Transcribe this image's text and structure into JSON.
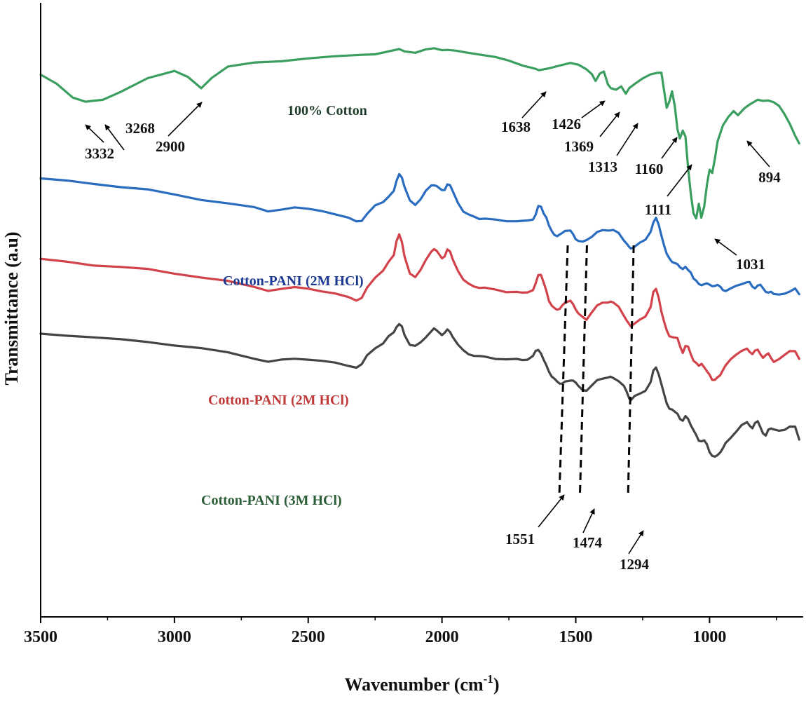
{
  "chart_data": {
    "type": "line",
    "title": "",
    "xlabel": "Wavenumber (cm",
    "xlabel_sup": "-1",
    "xlabel_close": ")",
    "ylabel": "Transmittance (a.u)",
    "xlim": [
      3500,
      650
    ],
    "x_reversed": true,
    "ylim": [
      0,
      100
    ],
    "y_ticks_shown": false,
    "grid": false,
    "legend": "none",
    "x_ticks": [
      3500,
      3000,
      2500,
      2000,
      1500,
      1000
    ],
    "x_tick_labels": [
      "3500",
      "3000",
      "2500",
      "2000",
      "1500",
      "1000"
    ],
    "series": [
      {
        "label": "100% Cotton",
        "color": "#3a9e5f",
        "label_color": "#1f3d2a",
        "x": [
          3500,
          3440,
          3380,
          3332,
          3300,
          3268,
          3200,
          3100,
          3000,
          2950,
          2900,
          2860,
          2800,
          2700,
          2600,
          2500,
          2400,
          2300,
          2250,
          2200,
          2160,
          2140,
          2100,
          2060,
          2030,
          2000,
          1980,
          1950,
          1900,
          1850,
          1800,
          1750,
          1700,
          1650,
          1638,
          1600,
          1560,
          1520,
          1490,
          1460,
          1440,
          1426,
          1410,
          1395,
          1380,
          1369,
          1350,
          1330,
          1313,
          1300,
          1280,
          1250,
          1220,
          1195,
          1180,
          1170,
          1160,
          1150,
          1140,
          1130,
          1120,
          1111,
          1100,
          1090,
          1080,
          1070,
          1060,
          1050,
          1040,
          1031,
          1020,
          1010,
          1000,
          990,
          980,
          970,
          950,
          930,
          910,
          894,
          870,
          850,
          820,
          800,
          780,
          760,
          740,
          720,
          700,
          680,
          665
        ],
        "y": [
          88.3,
          86.7,
          84.6,
          84.0,
          84.0,
          84.1,
          85.6,
          87.8,
          88.8,
          87.9,
          86.2,
          87.8,
          89.5,
          90.3,
          90.6,
          90.9,
          91.2,
          91.6,
          91.7,
          92.0,
          92.4,
          92.2,
          91.9,
          92.3,
          92.6,
          92.4,
          92.3,
          92.1,
          91.9,
          91.6,
          91.1,
          90.5,
          89.9,
          89.3,
          88.9,
          89.3,
          89.9,
          90.2,
          89.8,
          89.2,
          88.5,
          87.2,
          88.4,
          88.9,
          86.8,
          86.0,
          85.8,
          86.5,
          85.2,
          86.0,
          86.8,
          87.8,
          88.3,
          88.5,
          88.7,
          85.8,
          82.8,
          83.9,
          85.7,
          83.2,
          79.3,
          77.9,
          79.3,
          78.2,
          73.0,
          68.9,
          65.8,
          64.8,
          67.2,
          65.1,
          66.9,
          70.2,
          72.8,
          72.4,
          74.6,
          77.3,
          80.1,
          81.5,
          82.3,
          81.6,
          82.9,
          83.5,
          84.1,
          84.0,
          84.2,
          83.8,
          83.1,
          81.9,
          80.4,
          78.3,
          77.0
        ]
      },
      {
        "label": "Cotton-PANI (2M HCl)",
        "color": "#2a6cc0",
        "label_color": "#1c3a94",
        "x": [
          3500,
          3400,
          3300,
          3200,
          3100,
          3000,
          2900,
          2800,
          2700,
          2650,
          2600,
          2550,
          2500,
          2450,
          2400,
          2350,
          2320,
          2300,
          2280,
          2250,
          2220,
          2200,
          2180,
          2170,
          2160,
          2150,
          2140,
          2120,
          2100,
          2080,
          2060,
          2040,
          2030,
          2020,
          2000,
          1990,
          1980,
          1970,
          1960,
          1940,
          1920,
          1900,
          1880,
          1860,
          1840,
          1800,
          1760,
          1720,
          1700,
          1680,
          1660,
          1650,
          1640,
          1630,
          1620,
          1610,
          1600,
          1590,
          1580,
          1570,
          1560,
          1551,
          1540,
          1520,
          1510,
          1500,
          1490,
          1474,
          1460,
          1440,
          1420,
          1400,
          1380,
          1370,
          1360,
          1340,
          1320,
          1310,
          1300,
          1294,
          1280,
          1260,
          1240,
          1220,
          1210,
          1200,
          1190,
          1180,
          1170,
          1160,
          1150,
          1140,
          1120,
          1110,
          1100,
          1090,
          1080,
          1070,
          1060,
          1050,
          1040,
          1030,
          1020,
          1010,
          1000,
          990,
          980,
          970,
          960,
          950,
          940,
          920,
          900,
          880,
          860,
          850,
          840,
          830,
          820,
          810,
          800,
          790,
          780,
          770,
          760,
          740,
          720,
          700,
          680,
          665
        ],
        "y": [
          71.3,
          71.0,
          70.6,
          70.0,
          69.5,
          68.8,
          68.0,
          67.3,
          66.6,
          66.1,
          66.4,
          66.6,
          66.4,
          66.2,
          65.6,
          64.9,
          64.4,
          64.6,
          65.6,
          66.9,
          67.6,
          68.5,
          69.3,
          70.9,
          72.2,
          71.6,
          69.9,
          67.8,
          67.2,
          68.0,
          69.3,
          70.3,
          70.4,
          70.1,
          69.4,
          69.6,
          70.5,
          70.2,
          69.3,
          67.5,
          66.0,
          65.4,
          65.2,
          64.9,
          64.8,
          64.6,
          64.5,
          64.5,
          64.4,
          64.5,
          64.8,
          65.5,
          66.8,
          66.8,
          65.8,
          65.0,
          63.6,
          62.9,
          62.3,
          61.9,
          62.2,
          62.6,
          62.9,
          62.8,
          62.3,
          61.6,
          61.2,
          61.0,
          61.4,
          62.0,
          62.6,
          62.9,
          63.0,
          63.0,
          62.9,
          62.5,
          61.4,
          60.8,
          60.1,
          60.0,
          60.4,
          60.9,
          61.3,
          62.8,
          64.3,
          64.9,
          63.8,
          62.2,
          60.5,
          59.0,
          58.4,
          57.9,
          57.4,
          56.8,
          56.7,
          57.1,
          56.4,
          56.0,
          55.2,
          54.8,
          54.1,
          54.0,
          54.3,
          54.3,
          54.0,
          53.9,
          54.0,
          54.0,
          53.7,
          53.3,
          53.1,
          53.4,
          53.9,
          54.3,
          54.5,
          54.4,
          53.8,
          53.6,
          53.9,
          54.0,
          53.6,
          53.0,
          52.7,
          52.9,
          52.7,
          52.5,
          52.5,
          53.0,
          53.6,
          52.5
        ]
      },
      {
        "label": "Cotton-PANI (2M HCl)",
        "color": "#d2424a",
        "label_color": "#c03a3a",
        "x": [
          3500,
          3400,
          3300,
          3200,
          3100,
          3000,
          2900,
          2800,
          2700,
          2650,
          2600,
          2550,
          2500,
          2450,
          2400,
          2350,
          2320,
          2300,
          2280,
          2250,
          2220,
          2200,
          2180,
          2170,
          2160,
          2150,
          2140,
          2120,
          2100,
          2080,
          2060,
          2040,
          2030,
          2020,
          2000,
          1990,
          1980,
          1970,
          1960,
          1940,
          1920,
          1900,
          1880,
          1860,
          1840,
          1800,
          1760,
          1720,
          1700,
          1680,
          1660,
          1650,
          1640,
          1630,
          1620,
          1610,
          1600,
          1590,
          1580,
          1570,
          1560,
          1551,
          1540,
          1520,
          1510,
          1500,
          1490,
          1474,
          1460,
          1440,
          1420,
          1400,
          1380,
          1370,
          1360,
          1340,
          1320,
          1310,
          1300,
          1294,
          1280,
          1260,
          1240,
          1220,
          1210,
          1200,
          1190,
          1180,
          1170,
          1160,
          1150,
          1140,
          1120,
          1110,
          1100,
          1090,
          1080,
          1070,
          1060,
          1050,
          1040,
          1030,
          1020,
          1010,
          1000,
          990,
          980,
          970,
          960,
          950,
          940,
          920,
          900,
          880,
          860,
          850,
          840,
          830,
          820,
          810,
          800,
          790,
          780,
          770,
          760,
          740,
          720,
          700,
          680,
          665
        ],
        "y": [
          58.2,
          57.9,
          57.3,
          56.9,
          56.6,
          56.0,
          55.3,
          54.6,
          53.7,
          53.2,
          53.4,
          53.6,
          53.5,
          53.1,
          52.6,
          52.0,
          51.6,
          52.0,
          53.5,
          55.2,
          56.5,
          57.8,
          58.8,
          61.2,
          62.4,
          61.0,
          58.6,
          56.0,
          55.4,
          56.4,
          58.1,
          59.6,
          59.9,
          59.5,
          58.4,
          58.8,
          59.8,
          59.4,
          58.3,
          56.4,
          54.8,
          54.2,
          53.9,
          53.6,
          53.5,
          53.3,
          53.0,
          52.9,
          52.7,
          52.9,
          53.3,
          54.2,
          55.6,
          55.8,
          54.5,
          53.0,
          51.4,
          50.8,
          50.3,
          49.9,
          50.2,
          50.8,
          51.1,
          51.4,
          51.0,
          50.1,
          49.3,
          48.8,
          48.5,
          49.6,
          50.6,
          51.2,
          51.3,
          51.3,
          51.1,
          50.6,
          49.1,
          48.2,
          47.6,
          47.4,
          47.8,
          48.3,
          48.9,
          50.6,
          52.9,
          53.3,
          52.0,
          49.8,
          48.0,
          46.6,
          45.8,
          45.6,
          45.3,
          44.0,
          43.1,
          44.1,
          43.9,
          42.8,
          41.8,
          41.3,
          40.8,
          41.3,
          40.7,
          39.9,
          39.4,
          38.7,
          38.6,
          38.9,
          39.4,
          40.3,
          40.9,
          41.9,
          42.8,
          43.4,
          43.6,
          43.1,
          42.9,
          43.4,
          43.4,
          42.8,
          42.3,
          42.6,
          42.8,
          42.2,
          41.6,
          41.9,
          42.6,
          43.4,
          43.3,
          41.9
        ]
      },
      {
        "label": "Cotton-PANI (3M HCl)",
        "color": "#444444",
        "label_color": "#2b5d37",
        "x": [
          3500,
          3400,
          3300,
          3200,
          3100,
          3000,
          2900,
          2800,
          2700,
          2650,
          2600,
          2550,
          2500,
          2450,
          2400,
          2350,
          2320,
          2300,
          2280,
          2250,
          2220,
          2200,
          2180,
          2170,
          2160,
          2150,
          2140,
          2120,
          2100,
          2080,
          2060,
          2040,
          2030,
          2020,
          2000,
          1990,
          1980,
          1970,
          1960,
          1940,
          1920,
          1900,
          1880,
          1860,
          1840,
          1800,
          1760,
          1720,
          1700,
          1680,
          1660,
          1650,
          1640,
          1630,
          1620,
          1610,
          1600,
          1590,
          1580,
          1570,
          1560,
          1551,
          1540,
          1520,
          1510,
          1500,
          1490,
          1474,
          1460,
          1440,
          1420,
          1400,
          1380,
          1370,
          1360,
          1340,
          1320,
          1310,
          1300,
          1294,
          1280,
          1260,
          1240,
          1220,
          1210,
          1200,
          1190,
          1180,
          1170,
          1160,
          1150,
          1140,
          1120,
          1110,
          1100,
          1090,
          1080,
          1070,
          1060,
          1050,
          1040,
          1030,
          1020,
          1010,
          1000,
          990,
          980,
          970,
          960,
          950,
          940,
          920,
          900,
          880,
          860,
          850,
          840,
          830,
          820,
          810,
          800,
          790,
          780,
          770,
          760,
          740,
          720,
          700,
          680,
          665
        ],
        "y": [
          46.1,
          45.9,
          45.5,
          45.1,
          44.8,
          44.3,
          43.7,
          43.0,
          42.1,
          41.6,
          41.8,
          42.0,
          42.0,
          41.7,
          41.3,
          40.9,
          40.7,
          41.1,
          42.5,
          43.8,
          44.6,
          45.6,
          46.3,
          47.3,
          47.7,
          47.2,
          45.9,
          44.4,
          44.1,
          44.6,
          45.6,
          46.6,
          46.9,
          46.6,
          46.0,
          46.3,
          46.7,
          46.4,
          45.7,
          44.3,
          43.3,
          42.8,
          42.6,
          42.4,
          42.3,
          42.1,
          42.0,
          41.9,
          41.8,
          42.0,
          42.5,
          43.2,
          43.5,
          43.0,
          41.8,
          40.9,
          40.0,
          39.2,
          38.7,
          38.3,
          38.1,
          38.0,
          38.2,
          38.5,
          38.6,
          38.1,
          37.5,
          37.0,
          36.9,
          37.6,
          38.5,
          38.9,
          39.0,
          39.0,
          38.9,
          38.5,
          37.6,
          36.6,
          35.6,
          35.4,
          35.9,
          36.3,
          36.9,
          38.3,
          40.0,
          40.6,
          39.6,
          37.9,
          36.2,
          34.8,
          34.0,
          33.7,
          33.0,
          32.3,
          32.0,
          32.6,
          32.2,
          31.3,
          30.4,
          29.5,
          28.7,
          28.7,
          28.7,
          28.0,
          26.9,
          26.3,
          26.0,
          26.3,
          26.9,
          27.5,
          28.2,
          29.2,
          30.3,
          31.2,
          31.6,
          31.2,
          30.8,
          31.5,
          31.8,
          31.0,
          29.9,
          29.4,
          30.5,
          30.8,
          30.5,
          30.2,
          30.5,
          31.1,
          30.9,
          28.8
        ]
      }
    ],
    "annotations": [
      {
        "text": "3332",
        "x": 3332
      },
      {
        "text": "3268",
        "x": 3268
      },
      {
        "text": "2900",
        "x": 2900
      },
      {
        "text": "1638",
        "x": 1638
      },
      {
        "text": "1426",
        "x": 1426
      },
      {
        "text": "1369",
        "x": 1369
      },
      {
        "text": "1313",
        "x": 1313
      },
      {
        "text": "1160",
        "x": 1160
      },
      {
        "text": "1111",
        "x": 1111
      },
      {
        "text": "1031",
        "x": 1031
      },
      {
        "text": "894",
        "x": 894
      },
      {
        "text": "1551",
        "x": 1551
      },
      {
        "text": "1474",
        "x": 1474
      },
      {
        "text": "1294",
        "x": 1294
      }
    ],
    "dashed_markers": [
      1551,
      1474,
      1294
    ]
  }
}
